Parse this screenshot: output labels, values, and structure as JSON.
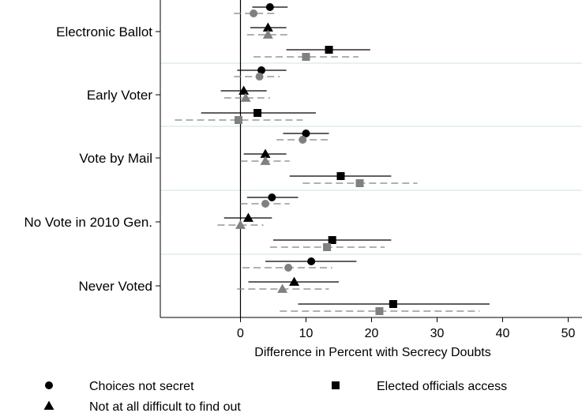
{
  "chart_data": {
    "type": "scatter",
    "title": "",
    "xlabel": "Difference in Percent with Secrecy Doubts",
    "xlim": [
      -12,
      52
    ],
    "xticks": [
      0,
      10,
      20,
      30,
      40,
      50
    ],
    "categories": [
      "Electronic Ballot",
      "Early Voter",
      "Vote by Mail",
      "No Vote in 2010 Gen.",
      "Never Voted"
    ],
    "series": [
      {
        "name": "Choices not secret",
        "marker": "circle",
        "values": [
          {
            "category": "Electronic Ballot",
            "black": {
              "est": 4.5,
              "lo": 1.8,
              "hi": 7.2
            },
            "gray": {
              "est": 2.0,
              "lo": -1.0,
              "hi": 5.5
            }
          },
          {
            "category": "Early Voter",
            "black": {
              "est": 3.2,
              "lo": -0.5,
              "hi": 7.0
            },
            "gray": {
              "est": 2.9,
              "lo": -1.0,
              "hi": 6.0
            }
          },
          {
            "category": "Vote by Mail",
            "black": {
              "est": 10.0,
              "lo": 6.5,
              "hi": 13.5
            },
            "gray": {
              "est": 9.5,
              "lo": 5.5,
              "hi": 13.8
            }
          },
          {
            "category": "No Vote in 2010 Gen.",
            "black": {
              "est": 4.8,
              "lo": 1.0,
              "hi": 8.8
            },
            "gray": {
              "est": 3.8,
              "lo": 0.0,
              "hi": 7.5
            }
          },
          {
            "category": "Never Voted",
            "black": {
              "est": 10.8,
              "lo": 3.8,
              "hi": 17.7
            },
            "gray": {
              "est": 7.3,
              "lo": 0.3,
              "hi": 14.0
            }
          }
        ]
      },
      {
        "name": "Not at all difficult to find out",
        "marker": "triangle",
        "values": [
          {
            "category": "Electronic Ballot",
            "black": {
              "est": 4.2,
              "lo": 1.5,
              "hi": 7.0
            },
            "gray": {
              "est": 4.2,
              "lo": 1.0,
              "hi": 7.5
            }
          },
          {
            "category": "Early Voter",
            "black": {
              "est": 0.5,
              "lo": -3.0,
              "hi": 4.0
            },
            "gray": {
              "est": 0.8,
              "lo": -2.5,
              "hi": 4.5
            }
          },
          {
            "category": "Vote by Mail",
            "black": {
              "est": 3.8,
              "lo": 0.5,
              "hi": 7.0
            },
            "gray": {
              "est": 3.8,
              "lo": 0.0,
              "hi": 7.5
            }
          },
          {
            "category": "No Vote in 2010 Gen.",
            "black": {
              "est": 1.2,
              "lo": -2.5,
              "hi": 4.8
            },
            "gray": {
              "est": 0.0,
              "lo": -3.5,
              "hi": 3.5
            }
          },
          {
            "category": "Never Voted",
            "black": {
              "est": 8.2,
              "lo": 1.2,
              "hi": 15.0
            },
            "gray": {
              "est": 6.4,
              "lo": -0.5,
              "hi": 13.5
            }
          }
        ]
      },
      {
        "name": "Elected officials access",
        "marker": "square",
        "values": [
          {
            "category": "Electronic Ballot",
            "black": {
              "est": 13.5,
              "lo": 7.0,
              "hi": 19.8
            },
            "gray": {
              "est": 10.0,
              "lo": 2.0,
              "hi": 18.0
            }
          },
          {
            "category": "Early Voter",
            "black": {
              "est": 2.6,
              "lo": -6.0,
              "hi": 11.5
            },
            "gray": {
              "est": -0.3,
              "lo": -10.0,
              "hi": 9.5
            }
          },
          {
            "category": "Vote by Mail",
            "black": {
              "est": 15.3,
              "lo": 7.5,
              "hi": 23.0
            },
            "gray": {
              "est": 18.2,
              "lo": 9.5,
              "hi": 27.0
            }
          },
          {
            "category": "No Vote in 2010 Gen.",
            "black": {
              "est": 14.0,
              "lo": 5.0,
              "hi": 23.0
            },
            "gray": {
              "est": 13.2,
              "lo": 4.5,
              "hi": 22.0
            }
          },
          {
            "category": "Never Voted",
            "black": {
              "est": 23.3,
              "lo": 8.8,
              "hi": 38.0
            },
            "gray": {
              "est": 21.2,
              "lo": 6.0,
              "hi": 36.5
            }
          }
        ]
      }
    ],
    "legend": {
      "position": "bottom",
      "items": [
        {
          "label": "Choices not secret",
          "marker": "circle"
        },
        {
          "label": "Elected officials access",
          "marker": "square"
        },
        {
          "label": "Not at all difficult to find out",
          "marker": "triangle"
        }
      ]
    },
    "colors": {
      "black": "#000000",
      "gray": "#808080",
      "separator": "#e0ebeb",
      "frame": "#000000"
    },
    "grid": false
  }
}
